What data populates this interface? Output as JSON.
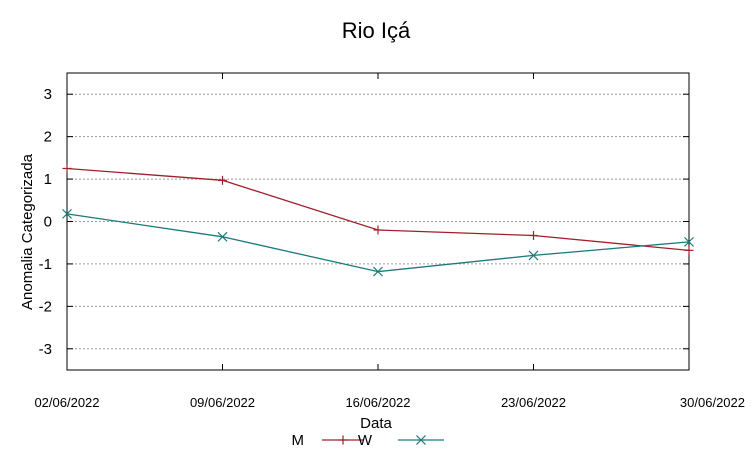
{
  "chart_data": {
    "type": "line",
    "title": "Rio Içá",
    "xlabel": "Data",
    "ylabel": "Anomalia Categorizada",
    "categories": [
      "02/06/2022",
      "09/06/2022",
      "16/06/2022",
      "23/06/2022",
      "30/06/2022"
    ],
    "x_days": [
      2,
      9,
      16,
      23,
      30
    ],
    "ylim": [
      -3.5,
      3.5
    ],
    "yticks": [
      "3",
      "2",
      "1",
      "0",
      "-1",
      "-2",
      "-3"
    ],
    "ytick_values": [
      3,
      2,
      1,
      0,
      -1,
      -2,
      -3
    ],
    "grid": true,
    "legend_position": "bottom-center",
    "series": [
      {
        "name": "M",
        "color": "#a0202a",
        "marker": "plus",
        "values": [
          1.25,
          0.97,
          -0.2,
          -0.33,
          -0.68
        ]
      },
      {
        "name": "W",
        "color": "#1a7a7a",
        "marker": "x",
        "values": [
          0.18,
          -0.36,
          -1.18,
          -0.8,
          -0.48
        ]
      }
    ]
  }
}
